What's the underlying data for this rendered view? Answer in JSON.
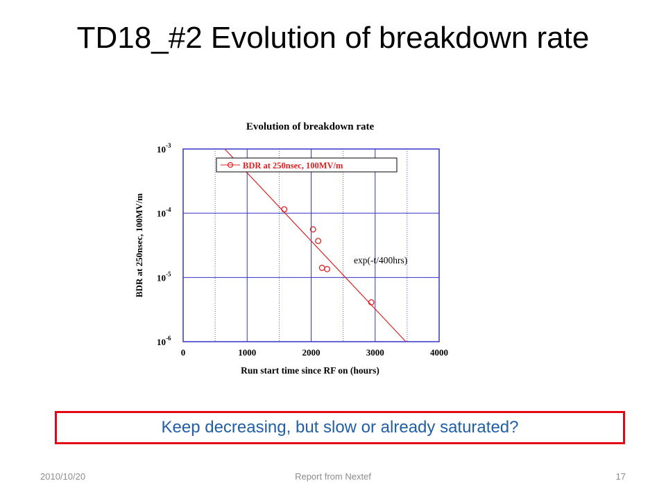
{
  "slide": {
    "title": "TD18_#2  Evolution of breakdown rate",
    "callout": "Keep decreasing, but slow or already saturated?",
    "footer": {
      "date": "2010/10/20",
      "center": "Report from Nextef",
      "page": "17"
    }
  },
  "colors": {
    "series": "#e02020",
    "grid": "#3333cc",
    "callout_border": "#e30613",
    "callout_text": "#1f5fa8"
  },
  "chart_data": {
    "type": "scatter",
    "title": "Evolution of breakdown rate",
    "xlabel": "Run start time since RF on (hours)",
    "ylabel": "BDR at 250nsec, 100MV/m",
    "xlim": [
      0,
      4000
    ],
    "ylim": [
      1e-06,
      0.001
    ],
    "yscale": "log",
    "grid": true,
    "xticks": [
      "0",
      "1000",
      "2000",
      "3000",
      "4000"
    ],
    "yticks": [
      {
        "base": "10",
        "exp": "-3",
        "value": 0.001
      },
      {
        "base": "10",
        "exp": "-4",
        "value": 0.0001
      },
      {
        "base": "10",
        "exp": "-5",
        "value": 1e-05
      },
      {
        "base": "10",
        "exp": "-6",
        "value": 1e-06
      }
    ],
    "legend": {
      "placement": "top-left",
      "entries": [
        "BDR at 250nsec, 100MV/m"
      ]
    },
    "series": [
      {
        "name": "BDR at 250nsec, 100MV/m",
        "x": [
          1580,
          2030,
          2110,
          2170,
          2250,
          2940
        ],
        "y": [
          0.000115,
          5.6e-05,
          3.7e-05,
          1.41e-05,
          1.35e-05,
          4.1e-06
        ]
      }
    ],
    "fit": {
      "label": "exp(-t/400hrs)",
      "x": [
        650,
        3480
      ],
      "y": [
        0.001,
        1e-06
      ]
    }
  }
}
